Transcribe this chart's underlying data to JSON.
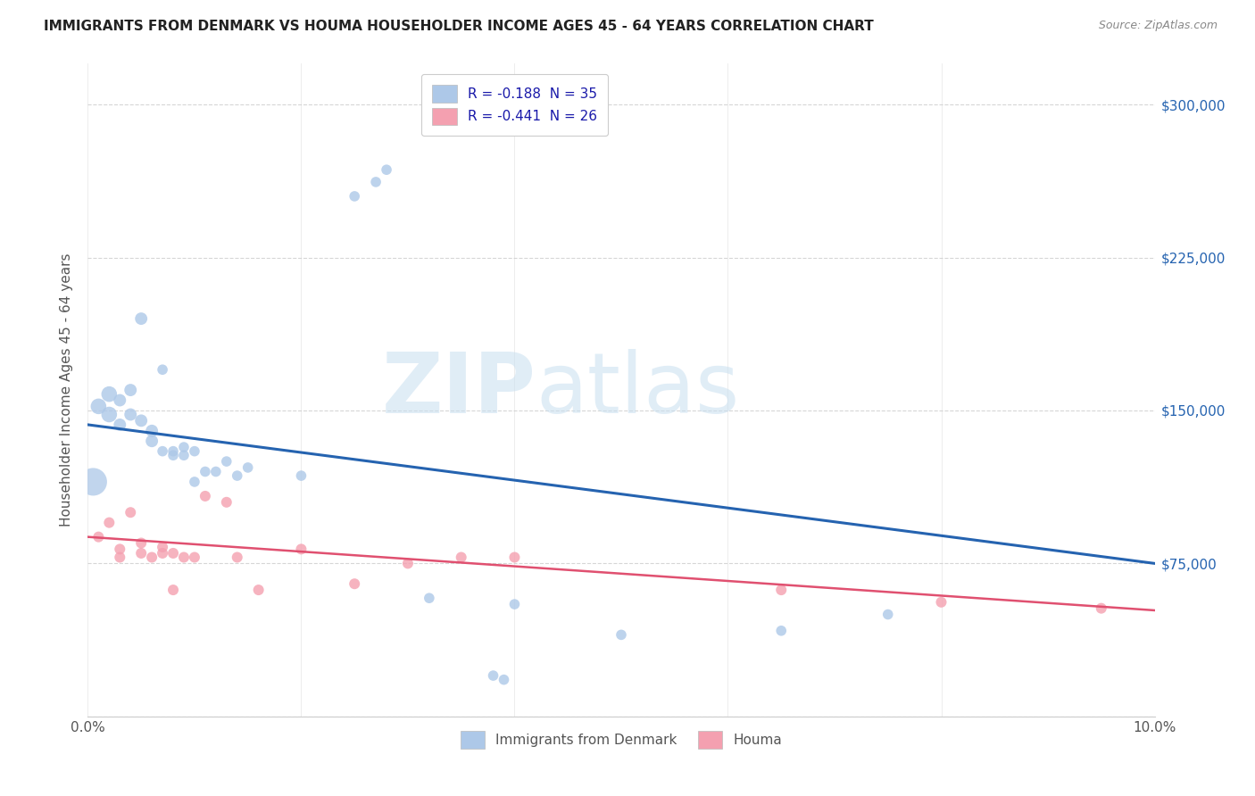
{
  "title": "IMMIGRANTS FROM DENMARK VS HOUMA HOUSEHOLDER INCOME AGES 45 - 64 YEARS CORRELATION CHART",
  "source": "Source: ZipAtlas.com",
  "ylabel": "Householder Income Ages 45 - 64 years",
  "xlim": [
    0.0,
    0.1
  ],
  "ylim": [
    0,
    320000
  ],
  "legend1_label": "R = -0.188  N = 35",
  "legend2_label": "R = -0.441  N = 26",
  "blue_scatter": [
    [
      0.001,
      152000
    ],
    [
      0.002,
      158000
    ],
    [
      0.002,
      148000
    ],
    [
      0.003,
      155000
    ],
    [
      0.003,
      143000
    ],
    [
      0.004,
      160000
    ],
    [
      0.004,
      148000
    ],
    [
      0.005,
      145000
    ],
    [
      0.005,
      195000
    ],
    [
      0.006,
      140000
    ],
    [
      0.006,
      135000
    ],
    [
      0.007,
      170000
    ],
    [
      0.007,
      130000
    ],
    [
      0.008,
      128000
    ],
    [
      0.008,
      130000
    ],
    [
      0.009,
      132000
    ],
    [
      0.009,
      128000
    ],
    [
      0.01,
      115000
    ],
    [
      0.01,
      130000
    ],
    [
      0.011,
      120000
    ],
    [
      0.012,
      120000
    ],
    [
      0.013,
      125000
    ],
    [
      0.014,
      118000
    ],
    [
      0.015,
      122000
    ],
    [
      0.02,
      118000
    ],
    [
      0.025,
      255000
    ],
    [
      0.027,
      262000
    ],
    [
      0.028,
      268000
    ],
    [
      0.032,
      58000
    ],
    [
      0.038,
      20000
    ],
    [
      0.039,
      18000
    ],
    [
      0.04,
      55000
    ],
    [
      0.05,
      40000
    ],
    [
      0.065,
      42000
    ],
    [
      0.075,
      50000
    ]
  ],
  "blue_large": [
    [
      0.0005,
      115000
    ]
  ],
  "pink_scatter": [
    [
      0.001,
      88000
    ],
    [
      0.002,
      95000
    ],
    [
      0.003,
      82000
    ],
    [
      0.003,
      78000
    ],
    [
      0.004,
      100000
    ],
    [
      0.005,
      85000
    ],
    [
      0.005,
      80000
    ],
    [
      0.006,
      78000
    ],
    [
      0.007,
      83000
    ],
    [
      0.007,
      80000
    ],
    [
      0.008,
      62000
    ],
    [
      0.008,
      80000
    ],
    [
      0.009,
      78000
    ],
    [
      0.01,
      78000
    ],
    [
      0.011,
      108000
    ],
    [
      0.013,
      105000
    ],
    [
      0.014,
      78000
    ],
    [
      0.016,
      62000
    ],
    [
      0.02,
      82000
    ],
    [
      0.025,
      65000
    ],
    [
      0.03,
      75000
    ],
    [
      0.035,
      78000
    ],
    [
      0.04,
      78000
    ],
    [
      0.065,
      62000
    ],
    [
      0.08,
      56000
    ],
    [
      0.095,
      53000
    ]
  ],
  "blue_line_x": [
    0.0,
    0.1
  ],
  "blue_line_y": [
    143000,
    75000
  ],
  "pink_line_x": [
    0.0,
    0.1
  ],
  "pink_line_y": [
    88000,
    52000
  ],
  "blue_color": "#adc8e8",
  "blue_line_color": "#2563b0",
  "pink_color": "#f4a0b0",
  "pink_line_color": "#e05070",
  "watermark_zip": "ZIP",
  "watermark_atlas": "atlas",
  "bg_color": "#ffffff",
  "grid_color": "#cccccc"
}
